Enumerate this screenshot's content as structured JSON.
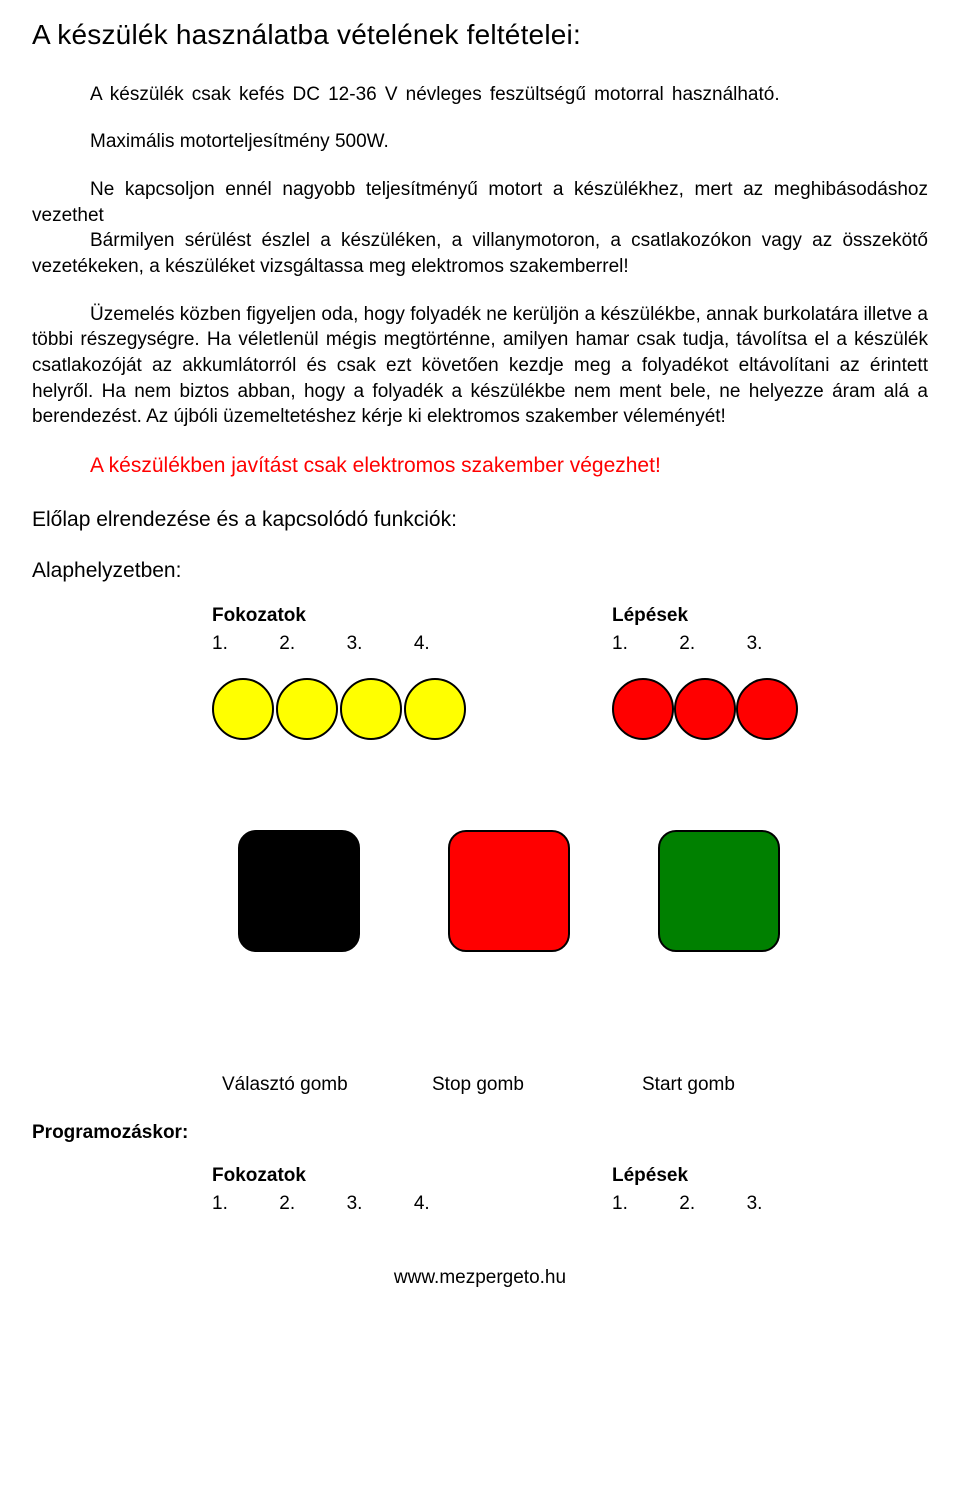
{
  "title": "A készülék használatba vételének feltételei:",
  "para1": "A készülék csak kefés DC 12-36 V névleges feszültségű motorral használható.",
  "para2": "Maximális motorteljesítmény 500W.",
  "para3": "Ne kapcsoljon ennél nagyobb teljesítményű motort a készülékhez, mert az meghibásodáshoz vezethet",
  "para3b": "Bármilyen sérülést észlel a készüléken, a villanymotoron, a csatlakozókon vagy az összekötő vezetékeken, a készüléket vizsgáltassa meg elektromos szakemberrel!",
  "para4": "Üzemelés közben figyeljen oda, hogy folyadék ne kerüljön a készülékbe, annak burkolatára illetve a többi részegységre. Ha véletlenül mégis megtörténne, amilyen hamar csak tudja, távolítsa el a készülék csatlakozóját az akkumlátorról és csak ezt követően kezdje meg a folyadékot eltávolítani az érintett helyről. Ha nem biztos abban, hogy a folyadék a készülékbe nem ment bele, ne helyezze áram alá a berendezést. Az újbóli üzemeltetéshez kérje ki elektromos szakember véleményét!",
  "warning": "A készülékben javítást csak elektromos szakember végezhet!",
  "section": "Előlap elrendezése és a kapcsolódó funkciók:",
  "subsection": "Alaphelyzetben:",
  "leds": {
    "left": {
      "title": "Fokozatok",
      "labels": [
        "1.",
        "2.",
        "3.",
        "4."
      ],
      "count": 4,
      "color": "#ffff00"
    },
    "right": {
      "title": "Lépések",
      "labels": [
        "1.",
        "2.",
        "3."
      ],
      "count": 3,
      "color": "#ff0000"
    }
  },
  "buttons": [
    {
      "color": "#000000",
      "label": "Választó gomb"
    },
    {
      "color": "#ff0000",
      "label": "Stop gomb"
    },
    {
      "color": "#008000",
      "label": "Start gomb"
    }
  ],
  "prog_label": "Programozáskor:",
  "leds2": {
    "left": {
      "title": "Fokozatok",
      "labels": [
        "1.",
        "2.",
        "3.",
        "4."
      ]
    },
    "right": {
      "title": "Lépések",
      "labels": [
        "1.",
        "2.",
        "3."
      ]
    }
  },
  "footer": "www.mezpergeto.hu",
  "colors": {
    "warning_text": "#ff0000",
    "led_border": "#000000",
    "button_border": "#000000"
  }
}
